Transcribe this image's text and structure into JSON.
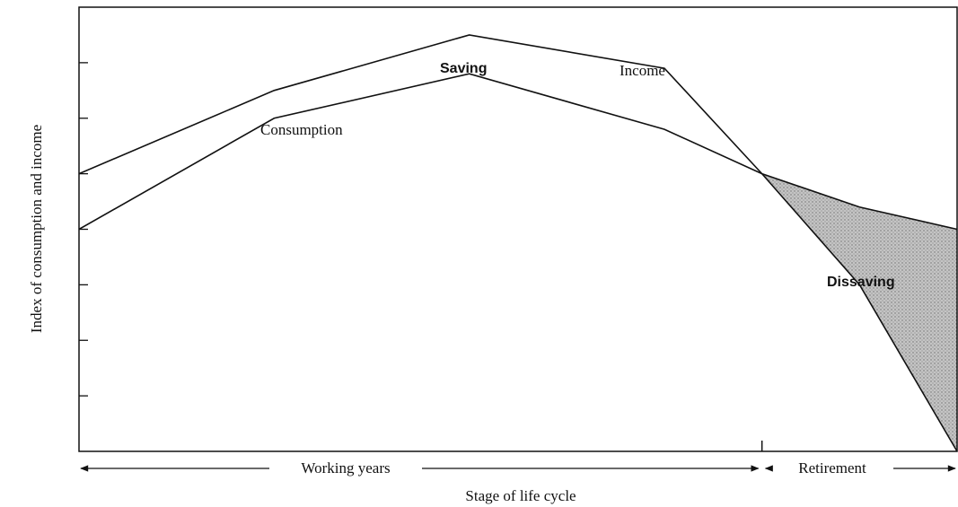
{
  "chart_data": {
    "type": "line",
    "title": "",
    "ylabel": "Index of consumption and income",
    "xlabel": "Stage of life cycle",
    "x": [
      0,
      1,
      2,
      3,
      3.5,
      4,
      4.5
    ],
    "ylim": [
      0,
      8
    ],
    "xlim": [
      0,
      4.5
    ],
    "y_ticks": [
      1,
      2,
      3,
      4,
      5,
      6,
      7
    ],
    "grid": false,
    "series": [
      {
        "name": "Income",
        "values": [
          5.0,
          6.5,
          7.5,
          6.9,
          5.0,
          3.0,
          0.0
        ]
      },
      {
        "name": "Consumption",
        "values": [
          4.0,
          6.0,
          6.8,
          5.8,
          5.0,
          4.4,
          4.0
        ]
      }
    ],
    "annotations": {
      "saving": "Saving",
      "dissaving": "Dissaving"
    },
    "stages": [
      {
        "label": "Working years",
        "from": 0,
        "to": 3.5
      },
      {
        "label": "Retirement",
        "from": 3.5,
        "to": 4.5
      }
    ],
    "colors": {
      "line": "#111111",
      "dissaving_fill": "#bdbdbd"
    }
  }
}
